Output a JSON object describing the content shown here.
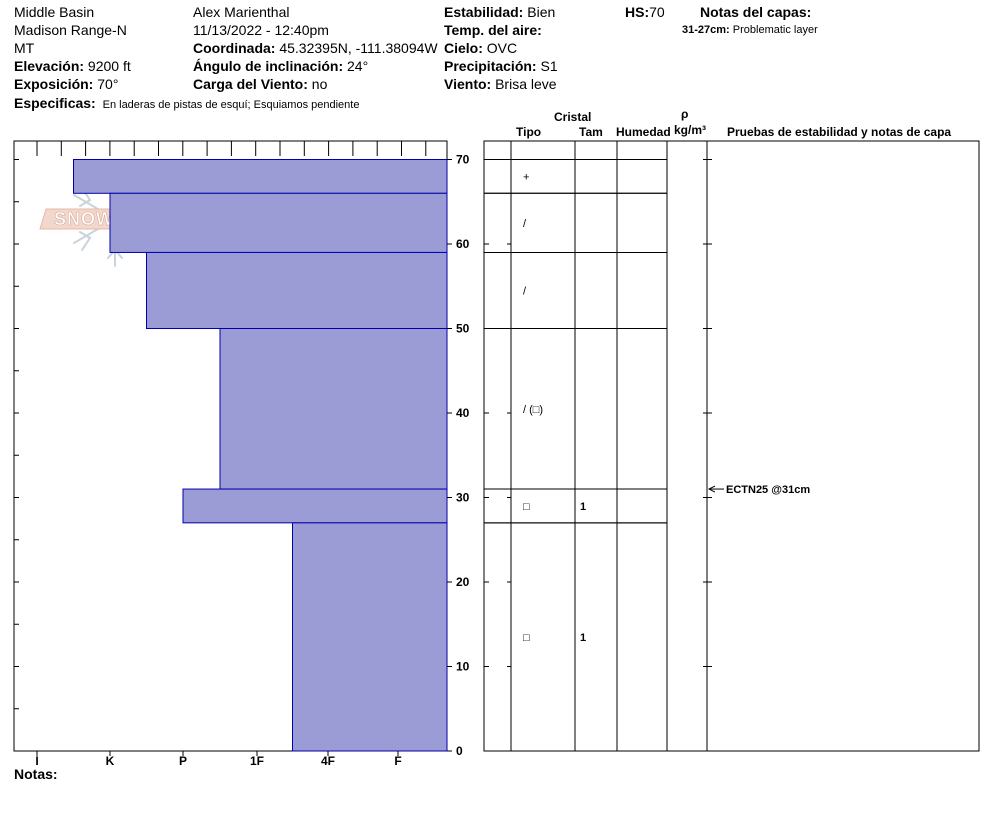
{
  "header": {
    "location": "Middle Basin",
    "range": "Madison Range-N",
    "state": "MT",
    "observer": "Alex Marienthal",
    "datetime": "11/13/2022 - 12:40pm",
    "elevation_label": "Elevación:",
    "elevation": "9200 ft",
    "aspect_label": "Exposición:",
    "aspect": "70°",
    "coord_label": "Coordinada:",
    "coordinates": "45.32395N, -111.38094W",
    "slope_label": "Ángulo de inclinación:",
    "slope": "24°",
    "wind_load_label": "Carga del Viento:",
    "wind_load": "no",
    "stability_label": "Estabilidad:",
    "stability": "Bien",
    "air_temp_label": "Temp. del aire:",
    "air_temp": "",
    "sky_label": "Cielo:",
    "sky": "OVC",
    "precip_label": "Precipitación:",
    "precip": "S1",
    "wind_label": "Viento:",
    "wind": "Brisa leve",
    "hs_label": "HS:",
    "hs": "70",
    "layer_notes_label": "Notas del capas:",
    "layer_note_range": "31-27cm:",
    "layer_note_text": "Problematic layer",
    "specifics_label": "Especificas:",
    "specifics": "En laderas de pistas de esquí; Esquiamos pendiente"
  },
  "logo": {
    "text": "SNOW PILOT"
  },
  "columns": {
    "cristal": "Cristal",
    "tipo": "Tipo",
    "tam": "Tam",
    "humedad": "Humedad",
    "rho": "ρ",
    "density_unit": "kg/m³",
    "tests": "Pruebas de estabilidad y notas de capa"
  },
  "notes_label": "Notas:",
  "stability_test": {
    "text": "ECTN25 @31cm",
    "depth": 31
  },
  "chart_data": {
    "type": "bar",
    "title": "",
    "xlabel": "",
    "ylabel": "",
    "ylim": [
      0,
      70
    ],
    "y_ticks": [
      "0",
      "10",
      "20",
      "30",
      "40",
      "50",
      "60",
      "70"
    ],
    "hardness_scale": [
      "I",
      "K",
      "P",
      "1F",
      "4F",
      "F"
    ],
    "layers": [
      {
        "top": 70,
        "bottom": 66,
        "hardness_index": 0.5,
        "crystal": "+",
        "size": ""
      },
      {
        "top": 66,
        "bottom": 59,
        "hardness_index": 1.0,
        "crystal": "/",
        "size": ""
      },
      {
        "top": 59,
        "bottom": 50,
        "hardness_index": 1.5,
        "crystal": "/",
        "size": ""
      },
      {
        "top": 50,
        "bottom": 31,
        "hardness_index": 2.5,
        "crystal": "/ (□)",
        "size": ""
      },
      {
        "top": 31,
        "bottom": 27,
        "hardness_index": 2.0,
        "crystal": "□",
        "size": "1"
      },
      {
        "top": 27,
        "bottom": 0,
        "hardness_index": 3.5,
        "crystal": "□",
        "size": "1"
      }
    ],
    "colors": {
      "fill": "#9b9bd6",
      "stroke": "#0000aa"
    }
  }
}
